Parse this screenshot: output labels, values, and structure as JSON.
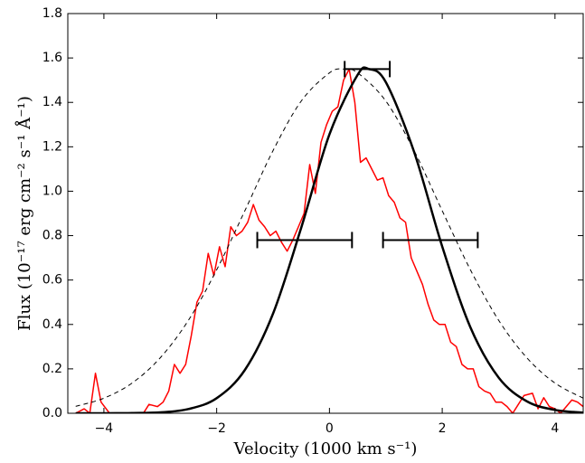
{
  "chart_data": {
    "type": "line",
    "xlabel": "Velocity (1000 km s⁻¹)",
    "ylabel": "Flux (10⁻¹⁷ erg cm⁻² s⁻¹ Å⁻¹)",
    "xlim": [
      -4.64,
      4.5
    ],
    "ylim": [
      0,
      1.8
    ],
    "xticks": [
      {
        "value": -4,
        "label": "−4"
      },
      {
        "value": -2,
        "label": "−2"
      },
      0,
      2,
      4
    ],
    "yticks": [
      {
        "value": 0,
        "label": "0.0"
      },
      {
        "value": 0.2,
        "label": "0.2"
      },
      {
        "value": 0.4,
        "label": "0.4"
      },
      {
        "value": 0.6,
        "label": "0.6"
      },
      {
        "value": 0.8,
        "label": "0.8"
      },
      {
        "value": 1.0,
        "label": "1.0"
      },
      {
        "value": 1.2,
        "label": "1.2"
      },
      {
        "value": 1.4,
        "label": "1.4"
      },
      {
        "value": 1.6,
        "label": "1.6"
      },
      {
        "value": 1.8,
        "label": "1.8"
      }
    ],
    "grid": false,
    "series": [
      {
        "color": "#ff0000",
        "width": 1.5,
        "dash": "none",
        "smooth": false,
        "x": [
          -4.5,
          -4.35,
          -4.25,
          -4.15,
          -4.05,
          -3.9,
          -3.7,
          -3.5,
          -3.3,
          -3.2,
          -3.05,
          -2.95,
          -2.85,
          -2.75,
          -2.65,
          -2.55,
          -2.45,
          -2.35,
          -2.25,
          -2.15,
          -2.05,
          -1.95,
          -1.85,
          -1.75,
          -1.65,
          -1.55,
          -1.45,
          -1.35,
          -1.25,
          -1.15,
          -1.05,
          -0.95,
          -0.85,
          -0.75,
          -0.65,
          -0.55,
          -0.45,
          -0.35,
          -0.25,
          -0.15,
          -0.05,
          0.05,
          0.15,
          0.25,
          0.35,
          0.45,
          0.55,
          0.65,
          0.75,
          0.85,
          0.95,
          1.05,
          1.15,
          1.25,
          1.35,
          1.45,
          1.55,
          1.65,
          1.75,
          1.85,
          1.95,
          2.05,
          2.15,
          2.25,
          2.35,
          2.45,
          2.55,
          2.65,
          2.75,
          2.85,
          2.95,
          3.05,
          3.15,
          3.25,
          3.35,
          3.45,
          3.6,
          3.7,
          3.8,
          3.9,
          4.0,
          4.1,
          4.2,
          4.3,
          4.4,
          4.5
        ],
        "values": [
          0.0,
          0.02,
          0.0,
          0.18,
          0.05,
          0.0,
          0.0,
          0.0,
          0.0,
          0.04,
          0.03,
          0.05,
          0.1,
          0.22,
          0.18,
          0.22,
          0.35,
          0.5,
          0.55,
          0.72,
          0.62,
          0.75,
          0.66,
          0.84,
          0.8,
          0.82,
          0.86,
          0.94,
          0.87,
          0.84,
          0.8,
          0.82,
          0.77,
          0.73,
          0.78,
          0.84,
          0.9,
          1.12,
          0.99,
          1.22,
          1.3,
          1.36,
          1.38,
          1.5,
          1.55,
          1.4,
          1.13,
          1.15,
          1.1,
          1.05,
          1.06,
          0.98,
          0.95,
          0.88,
          0.86,
          0.7,
          0.64,
          0.58,
          0.49,
          0.42,
          0.4,
          0.4,
          0.32,
          0.3,
          0.22,
          0.2,
          0.2,
          0.12,
          0.1,
          0.09,
          0.05,
          0.05,
          0.03,
          0.0,
          0.04,
          0.08,
          0.09,
          0.02,
          0.07,
          0.03,
          0.02,
          0.0,
          0.03,
          0.06,
          0.05,
          0.03
        ]
      },
      {
        "color": "#000000",
        "width": 2.5,
        "dash": "none",
        "smooth": true,
        "x": [
          -4.5,
          -4.0,
          -3.5,
          -3.0,
          -2.5,
          -2.0,
          -1.5,
          -1.0,
          -0.5,
          0,
          0.5,
          0.7,
          1.0,
          1.5,
          2.0,
          2.5,
          3.0,
          3.5,
          4.0,
          4.5
        ],
        "values": [
          0.0,
          0.0,
          0.001,
          0.004,
          0.019,
          0.068,
          0.195,
          0.449,
          0.836,
          1.256,
          1.524,
          1.55,
          1.491,
          1.178,
          0.751,
          0.387,
          0.161,
          0.054,
          0.015,
          0.003
        ]
      },
      {
        "color": "#000000",
        "width": 1,
        "dash": "5 4",
        "smooth": true,
        "x": [
          -4.5,
          -4.0,
          -3.5,
          -3.0,
          -2.5,
          -2.0,
          -1.5,
          -1.0,
          -0.5,
          0,
          0.25,
          0.5,
          1.0,
          1.5,
          2.0,
          2.5,
          3.0,
          3.5,
          4.0,
          4.5
        ],
        "values": [
          0.031,
          0.068,
          0.136,
          0.25,
          0.419,
          0.646,
          0.912,
          1.183,
          1.406,
          1.533,
          1.55,
          1.533,
          1.406,
          1.183,
          0.912,
          0.646,
          0.419,
          0.25,
          0.136,
          0.068
        ]
      }
    ],
    "errorbars": {
      "color": "#000000",
      "x": [
        0.67,
        -0.44,
        1.79
      ],
      "y": [
        1.55,
        0.78,
        0.78
      ],
      "xerr": [
        0.4,
        0.84,
        0.84
      ]
    }
  }
}
